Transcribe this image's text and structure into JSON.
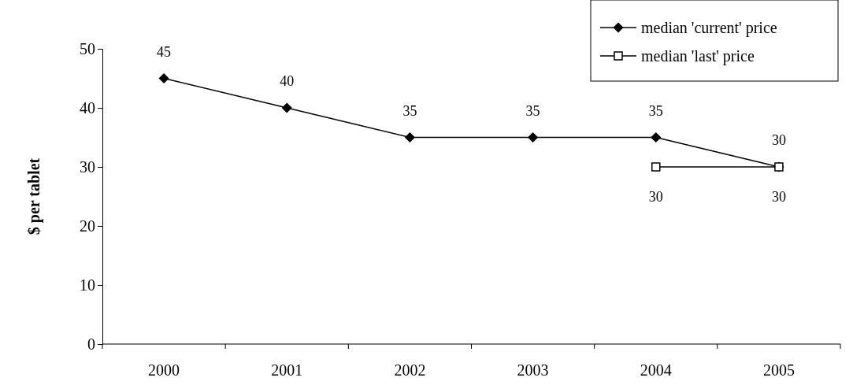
{
  "chart_data": {
    "type": "line",
    "ylabel": "$ per tablet",
    "categories": [
      "2000",
      "2001",
      "2002",
      "2003",
      "2004",
      "2005"
    ],
    "series": [
      {
        "name": "median 'current' price",
        "color": "#000000",
        "marker": "diamond",
        "values": [
          45,
          40,
          35,
          35,
          35,
          30
        ]
      },
      {
        "name": "median 'last' price",
        "color": "#000000",
        "marker": "square",
        "values": [
          null,
          null,
          null,
          null,
          30,
          30
        ]
      }
    ],
    "ylim": [
      0,
      50
    ],
    "yticks": [
      0,
      10,
      20,
      30,
      40,
      50
    ],
    "grid": false,
    "legend": "top right",
    "data_labels": true,
    "line_style": "solid"
  }
}
